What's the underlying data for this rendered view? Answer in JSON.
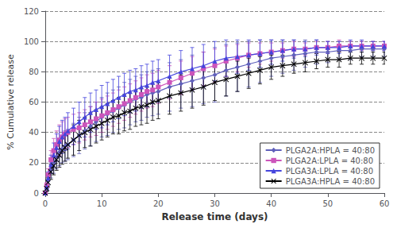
{
  "chart_data": {
    "type": "line",
    "xlabel": "Release time (days)",
    "ylabel": "% Cumulative release",
    "xlim": [
      0,
      60
    ],
    "ylim": [
      0,
      120
    ],
    "xticks": [
      0,
      10,
      20,
      30,
      40,
      50,
      60
    ],
    "yticks": [
      0,
      20,
      40,
      60,
      80,
      100,
      120
    ],
    "grid": true,
    "legend": "lower right",
    "x": [
      0,
      0.25,
      0.5,
      1,
      1.5,
      2,
      2.5,
      3,
      3.5,
      4,
      5,
      6,
      7,
      8,
      9,
      10,
      11,
      12,
      13,
      14,
      15,
      16,
      17,
      18,
      19,
      20,
      22,
      24,
      26,
      28,
      30,
      32,
      34,
      36,
      38,
      40,
      42,
      44,
      46,
      48,
      50,
      52,
      54,
      56,
      58,
      60
    ],
    "series": [
      {
        "name": "PLGA2A:HPLA = 40:80",
        "color": "#6060bb",
        "marker": "diamond",
        "values": [
          0,
          3,
          8,
          15,
          20,
          24,
          27,
          29,
          31,
          32,
          35,
          38,
          41,
          44,
          47,
          50,
          52,
          54,
          56,
          58,
          60,
          62,
          63,
          65,
          66,
          67,
          70,
          72,
          74,
          76,
          78,
          81,
          83,
          85,
          87,
          89,
          90,
          91,
          92,
          93,
          93,
          94,
          94,
          95,
          95,
          95
        ],
        "yerr": [
          0,
          2,
          3,
          5,
          7,
          8,
          9,
          9,
          10,
          10,
          11,
          12,
          12,
          13,
          13,
          13,
          14,
          14,
          14,
          15,
          15,
          15,
          15,
          15,
          15,
          15,
          16,
          16,
          17,
          17,
          18,
          17,
          16,
          15,
          14,
          12,
          11,
          10,
          9,
          8,
          7,
          6,
          6,
          5,
          5,
          5
        ]
      },
      {
        "name": "PLGA2A:LPLA = 40:80",
        "color": "#cc55bb",
        "marker": "square",
        "values": [
          0,
          5,
          12,
          22,
          28,
          32,
          35,
          37,
          39,
          40,
          42,
          43,
          45,
          47,
          49,
          51,
          53,
          55,
          57,
          59,
          61,
          63,
          65,
          67,
          68,
          70,
          73,
          76,
          79,
          82,
          84,
          87,
          89,
          91,
          92,
          93,
          94,
          95,
          95,
          96,
          96,
          97,
          97,
          97,
          97,
          97
        ],
        "yerr": [
          0,
          2,
          4,
          6,
          8,
          9,
          10,
          10,
          10,
          10,
          10,
          10,
          10,
          10,
          11,
          11,
          11,
          11,
          11,
          11,
          11,
          11,
          11,
          11,
          11,
          11,
          11,
          11,
          11,
          11,
          11,
          10,
          9,
          8,
          7,
          6,
          5,
          5,
          4,
          4,
          4,
          4,
          3,
          3,
          3,
          3
        ]
      },
      {
        "name": "PLGA3A:LPLA = 40:80",
        "color": "#4444dd",
        "marker": "triangle",
        "values": [
          0,
          4,
          10,
          19,
          25,
          30,
          34,
          37,
          39,
          41,
          44,
          47,
          50,
          53,
          55,
          57,
          59,
          61,
          63,
          65,
          67,
          68,
          70,
          71,
          73,
          74,
          77,
          80,
          82,
          84,
          87,
          89,
          90,
          91,
          92,
          93,
          94,
          95,
          95,
          96,
          96,
          96,
          97,
          97,
          97,
          97
        ],
        "yerr": [
          0,
          2,
          4,
          6,
          8,
          9,
          10,
          11,
          11,
          12,
          12,
          13,
          13,
          13,
          13,
          14,
          14,
          14,
          14,
          14,
          14,
          14,
          14,
          14,
          14,
          14,
          14,
          14,
          14,
          14,
          13,
          12,
          11,
          10,
          9,
          8,
          7,
          6,
          5,
          5,
          4,
          4,
          4,
          4,
          3,
          3
        ]
      },
      {
        "name": "PLGA3A:HPLA = 40:80",
        "color": "#000000",
        "marker": "x",
        "values": [
          0,
          3,
          7,
          14,
          18,
          22,
          25,
          28,
          30,
          32,
          35,
          38,
          40,
          42,
          44,
          46,
          48,
          50,
          51,
          53,
          54,
          56,
          57,
          58,
          60,
          61,
          64,
          66,
          68,
          70,
          73,
          75,
          77,
          79,
          81,
          83,
          84,
          85,
          86,
          87,
          88,
          88,
          89,
          89,
          89,
          89
        ],
        "yerr": [
          0,
          2,
          3,
          5,
          6,
          7,
          8,
          9,
          9,
          9,
          10,
          10,
          10,
          11,
          11,
          11,
          11,
          11,
          12,
          12,
          12,
          12,
          12,
          12,
          12,
          12,
          12,
          12,
          12,
          12,
          12,
          11,
          10,
          10,
          9,
          8,
          7,
          6,
          6,
          5,
          5,
          5,
          4,
          4,
          4,
          4
        ]
      }
    ]
  }
}
